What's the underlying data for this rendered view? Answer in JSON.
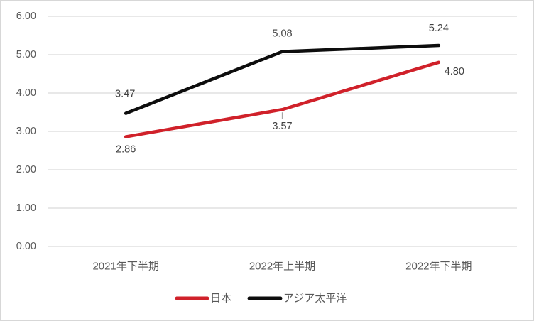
{
  "chart_data": {
    "type": "line",
    "title": "",
    "categories": [
      "2021年下半期",
      "2022年上半期",
      "2022年下半期"
    ],
    "series": [
      {
        "name": "日本",
        "color": "#d0212a",
        "values": [
          2.86,
          3.57,
          4.8
        ]
      },
      {
        "name": "アジア太平洋",
        "color": "#0d0d0d",
        "values": [
          3.47,
          5.08,
          5.24
        ]
      }
    ],
    "ylim": [
      0,
      6
    ],
    "ytick_step": 1,
    "ytick_labels": [
      "0.00",
      "1.00",
      "2.00",
      "3.00",
      "4.00",
      "5.00",
      "6.00"
    ],
    "data_labels": [
      "2.86",
      "3.57",
      "4.80",
      "3.47",
      "5.08",
      "5.24"
    ],
    "grid": "horizontal",
    "legend_position": "bottom",
    "colors": {
      "gridline": "#d9d9d9",
      "axis_text": "#595959",
      "data_label_text": "#404040",
      "leader_line": "#a6a6a6",
      "plot_background": "#ffffff",
      "frame_border": "#d7d7d7"
    }
  }
}
